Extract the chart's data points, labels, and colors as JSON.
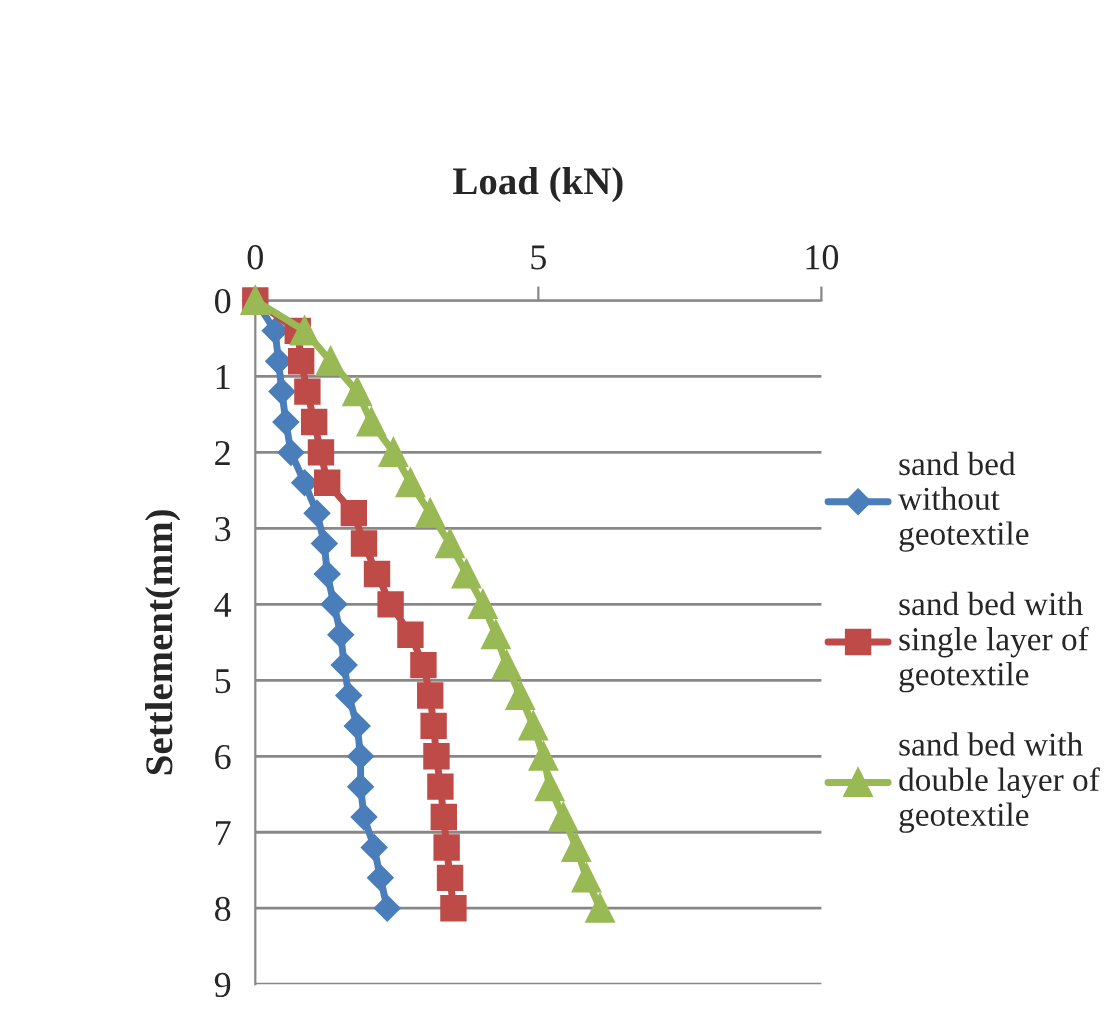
{
  "chart_data": {
    "type": "line",
    "xlabel": "Load (kN)",
    "ylabel": "Settlement(mm)",
    "series": [
      {
        "name": "sand bed without geotextile",
        "color": "#4a7ebb",
        "marker": "diamond",
        "x": [
          0,
          0.35,
          0.41,
          0.47,
          0.54,
          0.63,
          0.87,
          1.09,
          1.22,
          1.27,
          1.39,
          1.51,
          1.57,
          1.65,
          1.8,
          1.86,
          1.86,
          1.92,
          2.1,
          2.21,
          2.33
        ],
        "values": [
          0,
          0.4,
          0.8,
          1.2,
          1.6,
          2.0,
          2.4,
          2.8,
          3.2,
          3.6,
          4.0,
          4.4,
          4.8,
          5.2,
          5.6,
          6.0,
          6.4,
          6.8,
          7.2,
          7.6,
          8.0
        ]
      },
      {
        "name": "sand bed with single layer of geotextile",
        "color": "#be4b48",
        "marker": "square",
        "x": [
          0,
          0.75,
          0.81,
          0.92,
          1.04,
          1.16,
          1.27,
          1.74,
          1.92,
          2.15,
          2.39,
          2.74,
          2.97,
          3.09,
          3.15,
          3.2,
          3.27,
          3.33,
          3.38,
          3.44,
          3.5
        ],
        "values": [
          0,
          0.4,
          0.8,
          1.2,
          1.6,
          2.0,
          2.4,
          2.8,
          3.2,
          3.6,
          4.0,
          4.4,
          4.8,
          5.2,
          5.6,
          6.0,
          6.4,
          6.8,
          7.2,
          7.6,
          8.0
        ]
      },
      {
        "name": "sand bed with double layer of geotextile",
        "color": "#98b954",
        "marker": "triangle",
        "x": [
          0,
          0.87,
          1.33,
          1.8,
          2.05,
          2.44,
          2.74,
          3.09,
          3.44,
          3.73,
          4.02,
          4.25,
          4.44,
          4.68,
          4.91,
          5.09,
          5.2,
          5.44,
          5.67,
          5.85,
          6.09
        ],
        "values": [
          0,
          0.4,
          0.8,
          1.2,
          1.6,
          2.0,
          2.4,
          2.8,
          3.2,
          3.6,
          4.0,
          4.4,
          4.8,
          5.2,
          5.6,
          6.0,
          6.4,
          6.8,
          7.2,
          7.6,
          8.0
        ]
      }
    ],
    "xlim": [
      0,
      10
    ],
    "xticks": [
      0,
      5,
      10
    ],
    "ylim": [
      9,
      0
    ],
    "yticks": [
      0,
      1,
      2,
      3,
      4,
      5,
      6,
      7,
      8,
      9
    ],
    "grid": "y",
    "legend": "right",
    "line_style": "solid"
  }
}
